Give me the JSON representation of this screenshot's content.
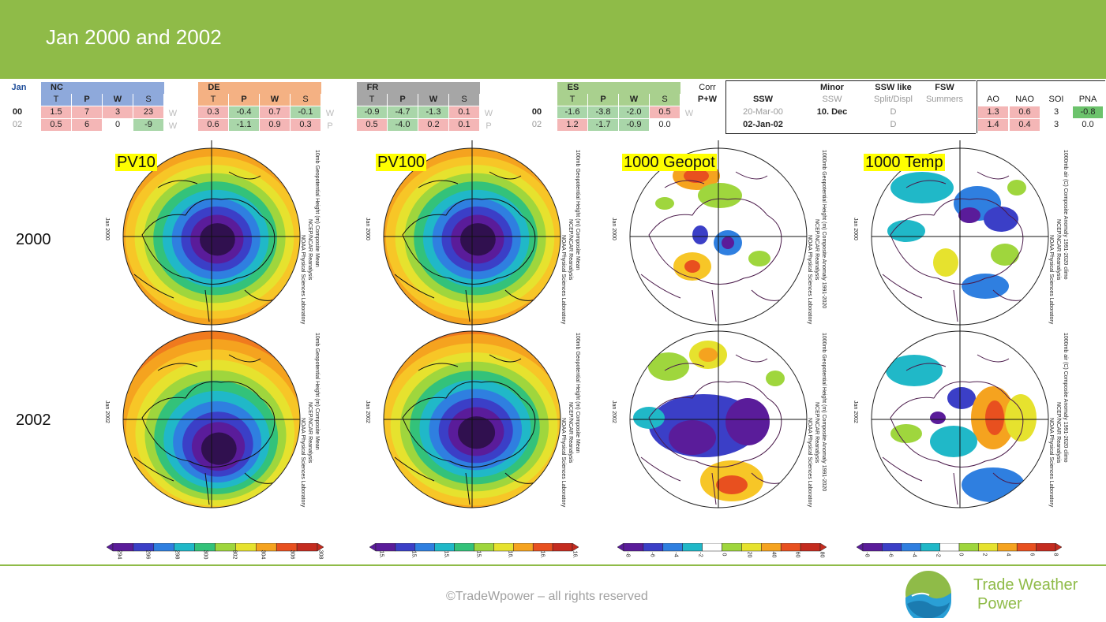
{
  "header": {
    "title": "Jan 2000 and 2002"
  },
  "table": {
    "jan": "Jan",
    "groups": [
      {
        "code": "NC",
        "color": "#8ea9db",
        "cols": [
          "T",
          "P",
          "W",
          "S"
        ],
        "row00": [
          "1.5",
          "7",
          "3",
          "23"
        ],
        "row02": [
          "0.5",
          "6",
          "0",
          "-9"
        ],
        "tag00": "W",
        "tag02": "W"
      },
      {
        "code": "DE",
        "color": "#f4b183",
        "cols": [
          "T",
          "P",
          "W",
          "S"
        ],
        "row00": [
          "0.3",
          "-0.4",
          "0.7",
          "-0.1"
        ],
        "row02": [
          "0.6",
          "-1.1",
          "0.9",
          "0.3"
        ],
        "tag00": "W",
        "tag02": "P"
      },
      {
        "code": "FR",
        "color": "#a6a6a6",
        "cols": [
          "T",
          "P",
          "W",
          "S"
        ],
        "row00": [
          "-0.9",
          "-4.7",
          "-1.3",
          "0.1"
        ],
        "row02": [
          "0.5",
          "-4.0",
          "0.2",
          "0.1"
        ],
        "tag00": "W",
        "tag02": "P"
      },
      {
        "code": "ES",
        "color": "#a9d08e",
        "cols": [
          "T",
          "P",
          "W",
          "S"
        ],
        "row00": [
          "-1.6",
          "-3.8",
          "-2.0",
          "0.5"
        ],
        "row02": [
          "1.2",
          "-1.7",
          "-0.9",
          "0.0"
        ],
        "tag00": "W",
        "tag02": ""
      }
    ],
    "years": [
      "00",
      "02"
    ],
    "corr": "Corr",
    "pw": "P+W",
    "ssw_header": "SSW",
    "minor_header": "Minor",
    "minor_sub": "SSW",
    "sswlike_header": "SSW like",
    "sswlike_sub": "Split/Displ",
    "fsw_header": "FSW",
    "fsw_sub": "Summers",
    "ssw_rows": [
      {
        "ssw": "20-Mar-00",
        "minor": "10. Dec",
        "like": "D",
        "fsw": ""
      },
      {
        "ssw": "02-Jan-02",
        "minor": "",
        "like": "D",
        "fsw": ""
      }
    ],
    "index_headers": [
      "AO",
      "NAO",
      "SOI",
      "PNA"
    ],
    "index_rows": [
      [
        "1.3",
        "0.6",
        "3",
        "-0.8"
      ],
      [
        "1.4",
        "0.4",
        "3",
        "0.0"
      ]
    ]
  },
  "maps": {
    "labels": [
      "PV10",
      "PV100",
      "1000 Geopot",
      "1000 Temp"
    ],
    "row_labels": [
      "2000",
      "2002"
    ],
    "left_caps": [
      "Jan 2000",
      "Jan 2002"
    ],
    "caps": {
      "pv10": "10mb Geopotential Height (m) Composite Mean",
      "pv100": "100mb Geopotential Height (m) Composite Mean",
      "geo": "1000mb Geopotential Height (m) Composite Anomaly 1991-2020",
      "temp": "1000mb air (C) Composite Anomaly 1991-2020 climo",
      "ncep": "NCEP/NCAR Reanalysis",
      "noaa": "NOAA Physical Sciences Laboratory"
    }
  },
  "colorbars": [
    {
      "ticks": [
        "294",
        "296",
        "298",
        "300",
        "302",
        "304",
        "306",
        "308"
      ]
    },
    {
      "ticks": [
        "15.",
        "15.",
        "15.",
        "15.",
        "16.",
        "16.",
        "16."
      ]
    },
    {
      "ticks": [
        "-8",
        "-6",
        "-4",
        "-2",
        "0",
        "20",
        "40",
        "60",
        "80"
      ]
    },
    {
      "ticks": [
        "-8",
        "-6",
        "-4",
        "-2",
        "0",
        "2",
        "4",
        "6",
        "8"
      ]
    }
  ],
  "footer": {
    "copyright": "©TradeWpower – all rights reserved",
    "brand_line1": "Trade Weather",
    "brand_line2": "Power"
  },
  "colors": {
    "accent": "#8fbb48",
    "positive": "#f4b6b6",
    "negative": "#a9d6a9"
  }
}
